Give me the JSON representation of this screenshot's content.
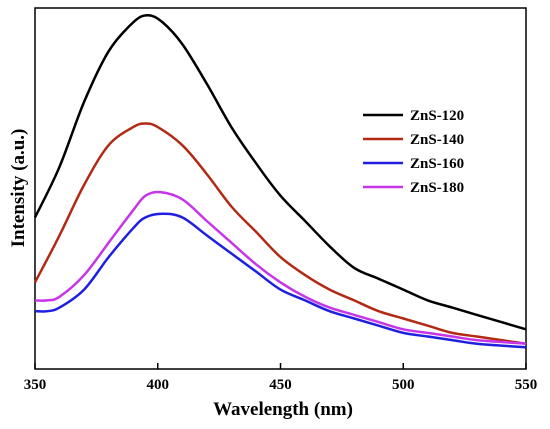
{
  "chart_data": {
    "type": "line",
    "xlabel": "Wavelength (nm)",
    "ylabel": "Intensity (a.u.)",
    "xlim": [
      350,
      550
    ],
    "ylim": [
      0,
      1
    ],
    "x_ticks": [
      350,
      400,
      450,
      500,
      550
    ],
    "y_ticks": [],
    "legend_position": "right",
    "series": [
      {
        "name": "ZnS-120",
        "color": "#000000",
        "x": [
          350,
          360,
          370,
          380,
          390,
          396,
          402,
          410,
          420,
          430,
          440,
          450,
          460,
          470,
          480,
          490,
          500,
          510,
          520,
          530,
          540,
          550
        ],
        "y": [
          0.42,
          0.56,
          0.74,
          0.88,
          0.96,
          0.98,
          0.96,
          0.9,
          0.79,
          0.67,
          0.57,
          0.48,
          0.41,
          0.34,
          0.28,
          0.25,
          0.22,
          0.19,
          0.17,
          0.15,
          0.13,
          0.11
        ]
      },
      {
        "name": "ZnS-140",
        "color": "#b22a14",
        "x": [
          350,
          360,
          370,
          380,
          390,
          395,
          400,
          410,
          420,
          430,
          440,
          450,
          460,
          470,
          480,
          490,
          500,
          510,
          520,
          530,
          540,
          550
        ],
        "y": [
          0.24,
          0.37,
          0.51,
          0.62,
          0.67,
          0.68,
          0.67,
          0.62,
          0.54,
          0.45,
          0.38,
          0.31,
          0.26,
          0.22,
          0.19,
          0.16,
          0.14,
          0.12,
          0.1,
          0.09,
          0.08,
          0.07
        ]
      },
      {
        "name": "ZnS-160",
        "color": "#1f1fe0",
        "x": [
          350,
          355,
          360,
          370,
          380,
          390,
          395,
          402,
          410,
          420,
          430,
          440,
          450,
          460,
          470,
          480,
          490,
          500,
          510,
          520,
          530,
          550
        ],
        "y": [
          0.16,
          0.16,
          0.17,
          0.22,
          0.31,
          0.39,
          0.42,
          0.43,
          0.42,
          0.37,
          0.32,
          0.27,
          0.22,
          0.19,
          0.16,
          0.14,
          0.12,
          0.1,
          0.09,
          0.08,
          0.07,
          0.06
        ]
      },
      {
        "name": "ZnS-180",
        "color": "#c636e8",
        "x": [
          350,
          355,
          360,
          370,
          380,
          390,
          395,
          401,
          410,
          420,
          430,
          440,
          450,
          460,
          470,
          480,
          490,
          500,
          510,
          520,
          530,
          550
        ],
        "y": [
          0.19,
          0.19,
          0.2,
          0.26,
          0.35,
          0.44,
          0.48,
          0.49,
          0.47,
          0.41,
          0.35,
          0.29,
          0.24,
          0.2,
          0.17,
          0.15,
          0.13,
          0.11,
          0.1,
          0.09,
          0.08,
          0.07
        ]
      }
    ]
  }
}
